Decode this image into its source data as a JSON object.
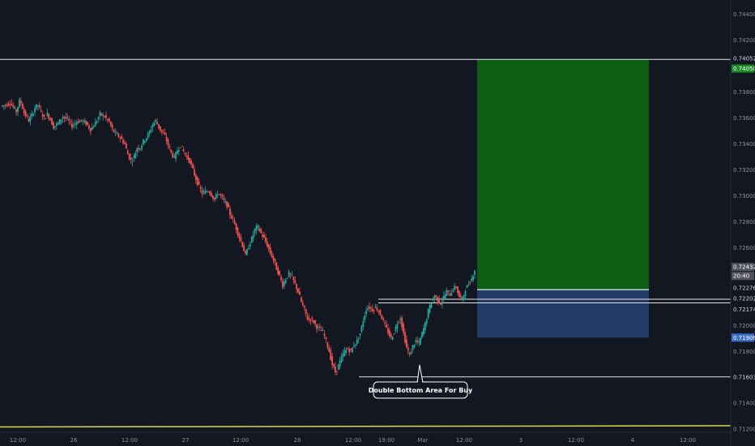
{
  "chart_data": {
    "type": "candlestick",
    "title": "",
    "price_axis": {
      "ylim": [
        0.7107,
        0.7451
      ],
      "ticks": [
        "0.74400",
        "0.74200",
        "0.73800",
        "0.73600",
        "0.73400",
        "0.73200",
        "0.73000",
        "0.72800",
        "0.72600",
        "0.72000",
        "0.71800",
        "0.71400",
        "0.71200"
      ]
    },
    "time_axis": {
      "ticks": [
        "12:00",
        "26",
        "12:00",
        "27",
        "12:00",
        "28",
        "12:00",
        "19:00",
        "Mar",
        "12:00",
        "3",
        "12:00",
        "4",
        "12:00"
      ]
    },
    "price_tags": [
      {
        "label": "0.74052",
        "price": 0.74052,
        "style": "outline"
      },
      {
        "label": "0.74050",
        "price": 0.7405,
        "style": "green"
      },
      {
        "label": "0.72432",
        "price": 0.72432,
        "style": "gray"
      },
      {
        "label": "20:40",
        "price": 0.72432,
        "style": "gray-sub"
      },
      {
        "label": "0.72276",
        "price": 0.72276,
        "style": "outline"
      },
      {
        "label": "0.72202",
        "price": 0.72202,
        "style": "outline"
      },
      {
        "label": "0.72174",
        "price": 0.72174,
        "style": "outline"
      },
      {
        "label": "0.71906",
        "price": 0.71906,
        "style": "blue"
      },
      {
        "label": "0.71603",
        "price": 0.71603,
        "style": "outline"
      }
    ],
    "levels": [
      {
        "price": 0.74052,
        "style": "full"
      },
      {
        "price": 0.72202,
        "style": "partial"
      },
      {
        "price": 0.72174,
        "style": "partial"
      },
      {
        "price": 0.71603,
        "style": "partial"
      }
    ],
    "position": {
      "type": "long",
      "entry": 0.72276,
      "target": 0.7405,
      "stop": 0.71906
    },
    "ma_line": {
      "price": 0.7122,
      "color": "#d8d84a"
    },
    "annotation": {
      "text": "Double Bottom Area For Buy"
    },
    "path_points": [
      [
        0,
        0.7369
      ],
      [
        3,
        0.737
      ],
      [
        6,
        0.7372
      ],
      [
        8,
        0.7368
      ],
      [
        10,
        0.7365
      ],
      [
        12,
        0.7373
      ],
      [
        13,
        0.7372
      ],
      [
        15,
        0.7364
      ],
      [
        18,
        0.7358
      ],
      [
        20,
        0.7362
      ],
      [
        22,
        0.7368
      ],
      [
        24,
        0.737
      ],
      [
        26,
        0.7364
      ],
      [
        28,
        0.736
      ],
      [
        30,
        0.7363
      ],
      [
        32,
        0.7359
      ],
      [
        34,
        0.7353
      ],
      [
        37,
        0.7356
      ],
      [
        40,
        0.7361
      ],
      [
        43,
        0.7359
      ],
      [
        46,
        0.7354
      ],
      [
        49,
        0.7357
      ],
      [
        52,
        0.7358
      ],
      [
        55,
        0.7356
      ],
      [
        58,
        0.7351
      ],
      [
        61,
        0.7356
      ],
      [
        64,
        0.7363
      ],
      [
        67,
        0.7361
      ],
      [
        70,
        0.7357
      ],
      [
        72,
        0.7351
      ],
      [
        74,
        0.7348
      ],
      [
        77,
        0.7345
      ],
      [
        80,
        0.734
      ],
      [
        82,
        0.7332
      ],
      [
        84,
        0.7327
      ],
      [
        86,
        0.733
      ],
      [
        88,
        0.7337
      ],
      [
        90,
        0.7337
      ],
      [
        92,
        0.7342
      ],
      [
        94,
        0.7345
      ],
      [
        96,
        0.7349
      ],
      [
        98,
        0.7355
      ],
      [
        100,
        0.7358
      ],
      [
        102,
        0.7353
      ],
      [
        104,
        0.7349
      ],
      [
        106,
        0.7346
      ],
      [
        108,
        0.7339
      ],
      [
        110,
        0.7333
      ],
      [
        112,
        0.7329
      ],
      [
        114,
        0.7335
      ],
      [
        116,
        0.7339
      ],
      [
        118,
        0.7334
      ],
      [
        120,
        0.733
      ],
      [
        122,
        0.7327
      ],
      [
        124,
        0.732
      ],
      [
        126,
        0.7313
      ],
      [
        128,
        0.7307
      ],
      [
        130,
        0.7302
      ],
      [
        132,
        0.7303
      ],
      [
        134,
        0.7304
      ],
      [
        136,
        0.7301
      ],
      [
        138,
        0.7297
      ],
      [
        140,
        0.7302
      ],
      [
        142,
        0.73
      ],
      [
        144,
        0.7296
      ],
      [
        146,
        0.7293
      ],
      [
        148,
        0.7286
      ],
      [
        150,
        0.7281
      ],
      [
        152,
        0.7275
      ],
      [
        154,
        0.7268
      ],
      [
        156,
        0.7262
      ],
      [
        158,
        0.7254
      ],
      [
        160,
        0.7261
      ],
      [
        162,
        0.7267
      ],
      [
        164,
        0.7274
      ],
      [
        166,
        0.7276
      ],
      [
        168,
        0.7271
      ],
      [
        170,
        0.7267
      ],
      [
        172,
        0.7262
      ],
      [
        174,
        0.7256
      ],
      [
        176,
        0.7251
      ],
      [
        178,
        0.7244
      ],
      [
        180,
        0.7238
      ],
      [
        182,
        0.7231
      ],
      [
        184,
        0.7236
      ],
      [
        186,
        0.724
      ],
      [
        188,
        0.7237
      ],
      [
        190,
        0.7232
      ],
      [
        192,
        0.7226
      ],
      [
        194,
        0.7218
      ],
      [
        196,
        0.7212
      ],
      [
        198,
        0.7205
      ],
      [
        200,
        0.7205
      ],
      [
        202,
        0.7203
      ],
      [
        204,
        0.7199
      ],
      [
        206,
        0.7197
      ],
      [
        208,
        0.7195
      ],
      [
        210,
        0.7188
      ],
      [
        212,
        0.718
      ],
      [
        214,
        0.717
      ],
      [
        216,
        0.7164
      ],
      [
        218,
        0.7169
      ],
      [
        220,
        0.7175
      ],
      [
        222,
        0.718
      ],
      [
        224,
        0.7182
      ],
      [
        226,
        0.718
      ],
      [
        228,
        0.7185
      ],
      [
        230,
        0.7188
      ],
      [
        232,
        0.7194
      ],
      [
        234,
        0.7204
      ],
      [
        236,
        0.7213
      ],
      [
        238,
        0.7214
      ],
      [
        240,
        0.7212
      ],
      [
        242,
        0.7214
      ],
      [
        244,
        0.7211
      ],
      [
        246,
        0.7206
      ],
      [
        248,
        0.72
      ],
      [
        250,
        0.7195
      ],
      [
        252,
        0.719
      ],
      [
        254,
        0.7195
      ],
      [
        256,
        0.7202
      ],
      [
        258,
        0.7206
      ],
      [
        260,
        0.7194
      ],
      [
        262,
        0.7183
      ],
      [
        264,
        0.7177
      ],
      [
        266,
        0.7184
      ],
      [
        268,
        0.7188
      ],
      [
        270,
        0.7186
      ],
      [
        272,
        0.7194
      ],
      [
        274,
        0.7201
      ],
      [
        276,
        0.7211
      ],
      [
        278,
        0.7218
      ],
      [
        280,
        0.7223
      ],
      [
        282,
        0.722
      ],
      [
        284,
        0.7217
      ],
      [
        286,
        0.7222
      ],
      [
        288,
        0.7226
      ],
      [
        290,
        0.7224
      ],
      [
        292,
        0.7228
      ],
      [
        294,
        0.723
      ],
      [
        296,
        0.7222
      ],
      [
        298,
        0.722
      ],
      [
        300,
        0.7228
      ],
      [
        302,
        0.7232
      ],
      [
        304,
        0.7236
      ],
      [
        306,
        0.7243
      ]
    ]
  }
}
